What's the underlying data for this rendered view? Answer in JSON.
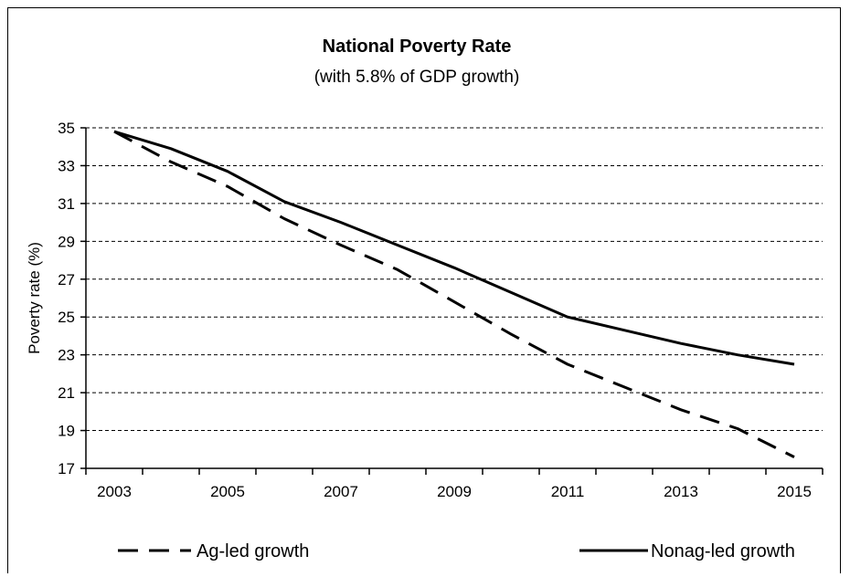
{
  "chart_data": {
    "type": "line",
    "title": "National Poverty Rate",
    "subtitle": "(with 5.8% of GDP growth)",
    "xlabel": "",
    "ylabel": "Poverty rate (%)",
    "x": [
      2003,
      2004,
      2005,
      2006,
      2007,
      2008,
      2009,
      2010,
      2011,
      2012,
      2013,
      2014,
      2015
    ],
    "x_tick_labels": [
      "2003",
      "2005",
      "2007",
      "2009",
      "2011",
      "2013",
      "2015"
    ],
    "x_ticks": [
      2003,
      2005,
      2007,
      2009,
      2011,
      2013,
      2015
    ],
    "y_tick_labels": [
      "35",
      "33",
      "31",
      "29",
      "27",
      "25",
      "23",
      "21",
      "19",
      "17"
    ],
    "y_ticks": [
      35,
      33,
      31,
      29,
      27,
      25,
      23,
      21,
      19,
      17
    ],
    "xlim": [
      2002.5,
      2015.5
    ],
    "ylim": [
      17,
      35
    ],
    "grid": true,
    "legend_placement": "bottom",
    "series": [
      {
        "name": "Ag-led growth",
        "style": "dashed",
        "color": "#000000",
        "values": [
          34.8,
          33.2,
          31.9,
          30.2,
          28.8,
          27.5,
          25.8,
          24.1,
          22.5,
          21.3,
          20.1,
          19.1,
          17.6
        ]
      },
      {
        "name": "Nonag-led growth",
        "style": "solid",
        "color": "#000000",
        "values": [
          34.8,
          33.9,
          32.7,
          31.1,
          30.0,
          28.8,
          27.6,
          26.3,
          25.0,
          24.3,
          23.6,
          23.0,
          22.5
        ]
      }
    ]
  }
}
